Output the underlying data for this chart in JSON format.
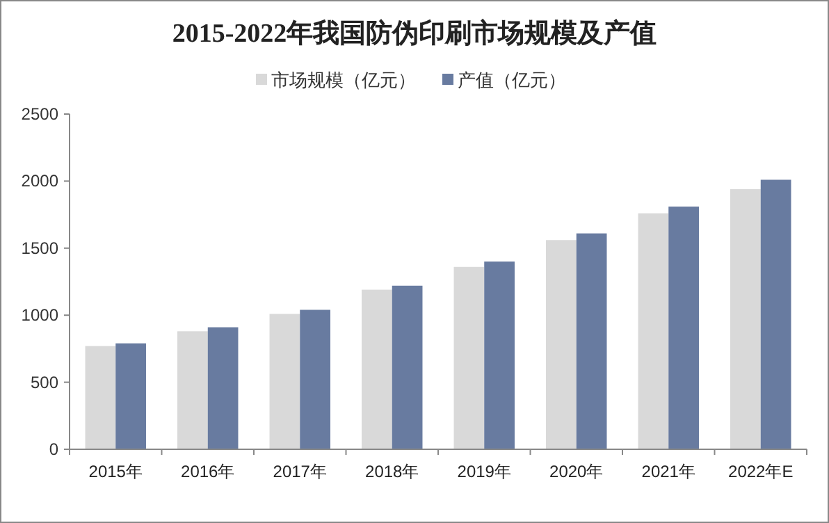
{
  "chart_data": {
    "type": "bar",
    "title": "2015-2022年我国防伪印刷市场规模及产值",
    "categories": [
      "2015年",
      "2016年",
      "2017年",
      "2018年",
      "2019年",
      "2020年",
      "2021年",
      "2022年E"
    ],
    "series": [
      {
        "name": "市场规模（亿元）",
        "color": "#d9d9d9",
        "values": [
          770,
          880,
          1010,
          1190,
          1360,
          1560,
          1760,
          1940
        ]
      },
      {
        "name": "产值（亿元）",
        "color": "#687ba0",
        "values": [
          790,
          910,
          1040,
          1220,
          1400,
          1610,
          1810,
          2010
        ]
      }
    ],
    "ylim": [
      0,
      2500
    ],
    "yticks": [
      0,
      500,
      1000,
      1500,
      2000,
      2500
    ],
    "grid": false,
    "legend": "top"
  }
}
